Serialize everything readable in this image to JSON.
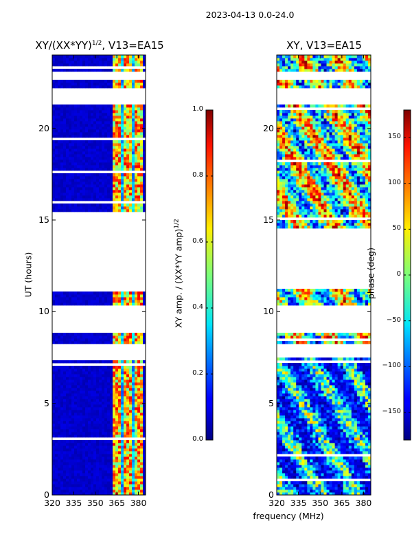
{
  "figure_title": "2023-04-13 0.0-24.0",
  "chart_data": [
    {
      "type": "heatmap",
      "title": "XY/(XX*YY)",
      "title_sup": "1/2",
      "title_suffix": ", V13=EA15",
      "xlabel": "",
      "ylabel": "UT (hours)",
      "xlim": [
        320,
        385
      ],
      "ylim": [
        0,
        24
      ],
      "xticks": [
        320,
        335,
        350,
        365,
        380
      ],
      "yticks": [
        0,
        5,
        10,
        15,
        20
      ],
      "colorbar": {
        "label": "XY amp. / (XX*YY amp)",
        "label_sup": "1/2",
        "range": [
          0.0,
          1.0
        ],
        "ticks": [
          "0.0",
          "0.2",
          "0.4",
          "0.6",
          "0.8",
          "1.0"
        ],
        "tick_values": [
          0.0,
          0.2,
          0.4,
          0.6,
          0.8,
          1.0
        ]
      },
      "blank_intervals_ut": [
        [
          7.5,
          8.3
        ],
        [
          11.2,
          15.5
        ],
        [
          21.3,
          22.2
        ],
        [
          22.7,
          23.0
        ],
        [
          8.9,
          10.3
        ]
      ],
      "active_band_mhz": [
        362,
        383
      ],
      "typical_value_background": 0.05,
      "typical_value_band": 0.45
    },
    {
      "type": "heatmap",
      "title": "XY, V13=EA15",
      "xlabel": "frequency (MHz)",
      "ylabel": "",
      "xlim": [
        320,
        385
      ],
      "ylim": [
        0,
        24
      ],
      "xticks": [
        320,
        335,
        350,
        365,
        380
      ],
      "yticks": [
        0,
        5,
        10,
        15,
        20
      ],
      "colorbar": {
        "label": "phase (deg)",
        "range": [
          -180,
          180
        ],
        "ticks": [
          "−150",
          "−100",
          "−50",
          "0",
          "50",
          "100",
          "150"
        ],
        "tick_values": [
          -150,
          -100,
          -50,
          0,
          50,
          100,
          150
        ]
      },
      "blank_intervals_ut": [
        [
          7.5,
          8.3
        ],
        [
          11.2,
          14.6
        ],
        [
          21.3,
          22.2
        ],
        [
          22.7,
          23.0
        ],
        [
          8.9,
          10.3
        ]
      ]
    }
  ]
}
